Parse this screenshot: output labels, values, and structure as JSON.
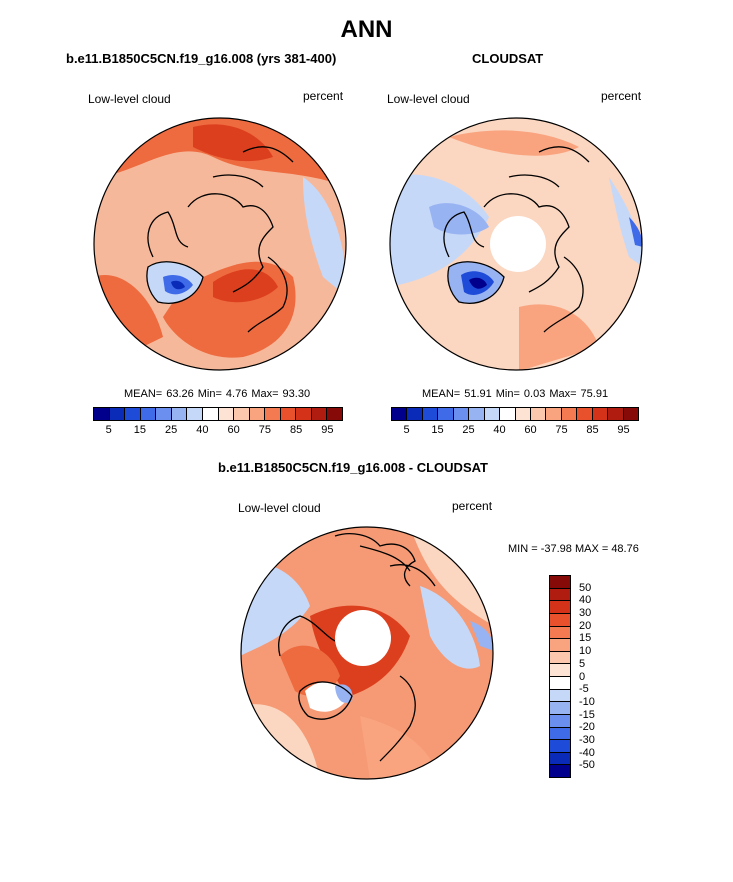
{
  "title": "ANN",
  "panels": {
    "model": {
      "title": "b.e11.B1850C5CN.f19_g16.008 (yrs 381-400)",
      "variable": "Low-level cloud",
      "units": "percent",
      "mean_label": "MEAN=",
      "mean_value": "63.26",
      "min_label": "Min=",
      "min_value": "4.76",
      "max_label": "Max=",
      "max_value": "93.30"
    },
    "obs": {
      "title": "CLOUDSAT",
      "variable": "Low-level cloud",
      "units": "percent",
      "mean_label": "MEAN=",
      "mean_value": "51.91",
      "min_label": "Min=",
      "min_value": "0.03",
      "max_label": "Max=",
      "max_value": "75.91"
    },
    "diff": {
      "title": "b.e11.B1850C5CN.f19_g16.008 - CLOUDSAT",
      "variable": "Low-level cloud",
      "units": "percent",
      "range_text": "MIN = -37.98 MAX =  48.76"
    }
  },
  "abs_colorbar": {
    "colors": [
      "#00008c",
      "#0a2ab8",
      "#1f4bd9",
      "#3f6ae8",
      "#6a8fee",
      "#98b3f2",
      "#c6d8f8",
      "#ffffff",
      "#fde3d3",
      "#fbc8ad",
      "#f9a37f",
      "#f37a51",
      "#e9512c",
      "#d4331a",
      "#b01c10",
      "#850a08"
    ],
    "tick_labels": [
      "5",
      "15",
      "25",
      "40",
      "60",
      "75",
      "85",
      "95"
    ]
  },
  "diff_colorbar": {
    "colors": [
      "#850a08",
      "#b01c10",
      "#d4331a",
      "#e9512c",
      "#f37a51",
      "#f9a37f",
      "#fbc8ad",
      "#fde3d3",
      "#ffffff",
      "#c6d8f8",
      "#98b3f2",
      "#6a8fee",
      "#3f6ae8",
      "#1f4bd9",
      "#0a2ab8",
      "#00008c"
    ],
    "tick_labels": [
      "50",
      "40",
      "30",
      "20",
      "15",
      "10",
      "5",
      "0",
      "-5",
      "-10",
      "-15",
      "-20",
      "-30",
      "-40",
      "-50"
    ]
  },
  "map_colors": {
    "base_model": "#f6b89a",
    "base_obs": "#fbd6c0",
    "base_diff": "#f59a74",
    "deep_red": "#dc3f1e",
    "mid_red": "#ee6a3f",
    "light_blue": "#c6d8f8",
    "mid_blue": "#6a8fee",
    "deep_blue": "#0a2ab8",
    "pole_hole": "#ffffff",
    "coast": "#000000"
  }
}
